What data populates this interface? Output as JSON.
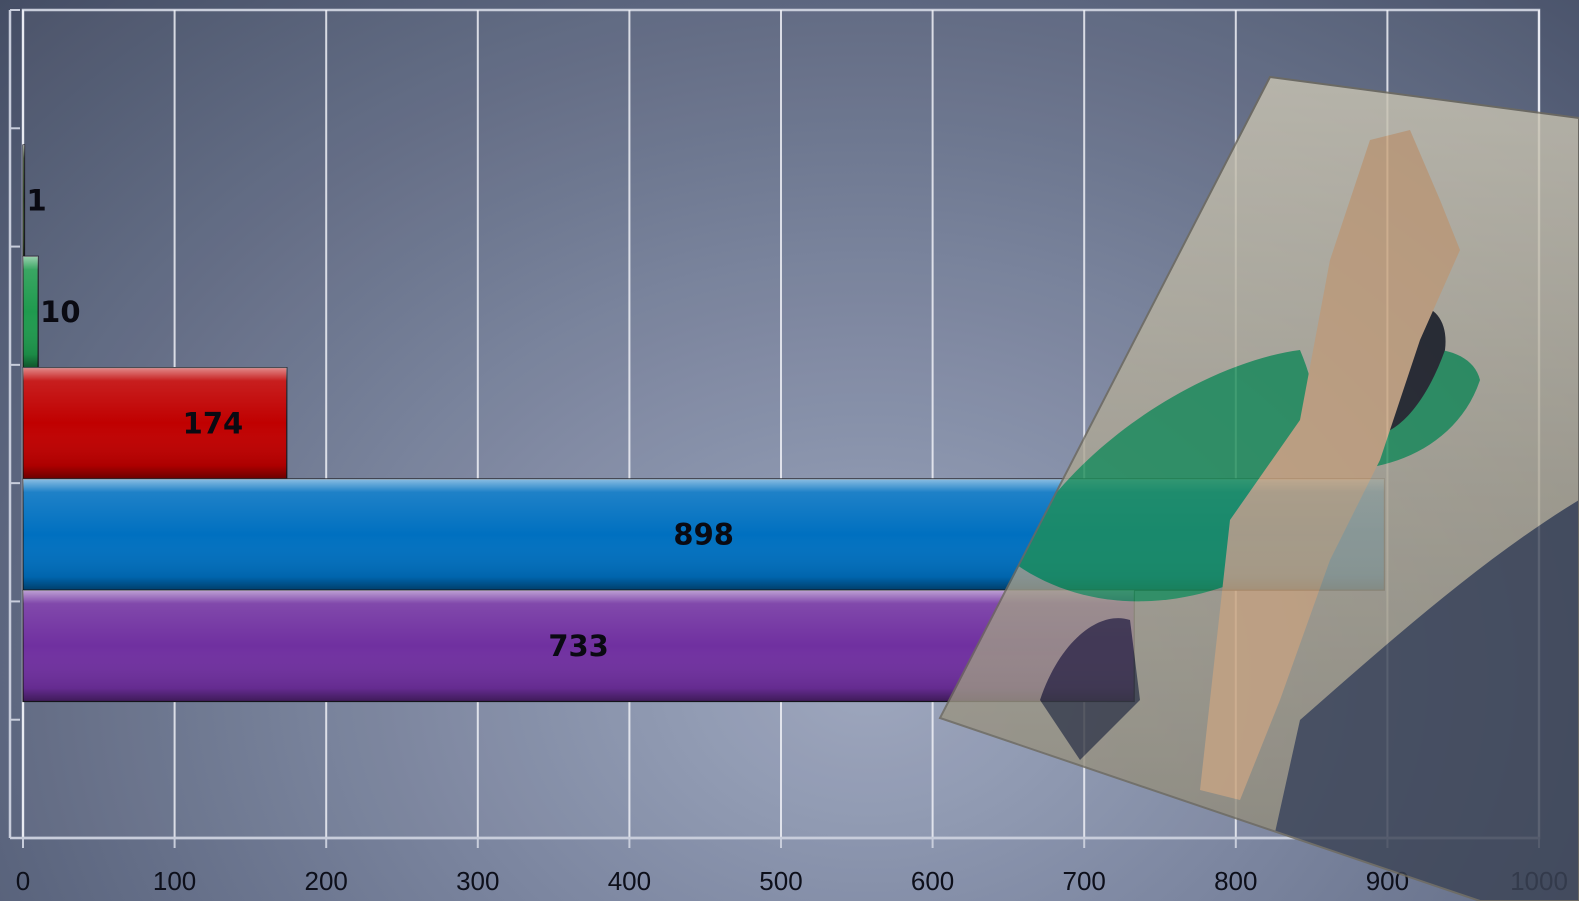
{
  "chart_data": {
    "type": "bar",
    "orientation": "horizontal",
    "title": "",
    "xlabel": "",
    "ylabel": "",
    "xlim": [
      0,
      1000
    ],
    "x_ticks": [
      0,
      100,
      200,
      300,
      400,
      500,
      600,
      700,
      800,
      900,
      1000
    ],
    "grid": true,
    "legend": "none",
    "bars": [
      {
        "value": 1,
        "label": "1",
        "color": "#6ba43a"
      },
      {
        "value": 10,
        "label": "10",
        "color": "#1f9a4e"
      },
      {
        "value": 174,
        "label": "174",
        "color": "#c00000"
      },
      {
        "value": 898,
        "label": "898",
        "color": "#0070c0"
      },
      {
        "value": 733,
        "label": "733",
        "color": "#7030a0"
      }
    ]
  }
}
